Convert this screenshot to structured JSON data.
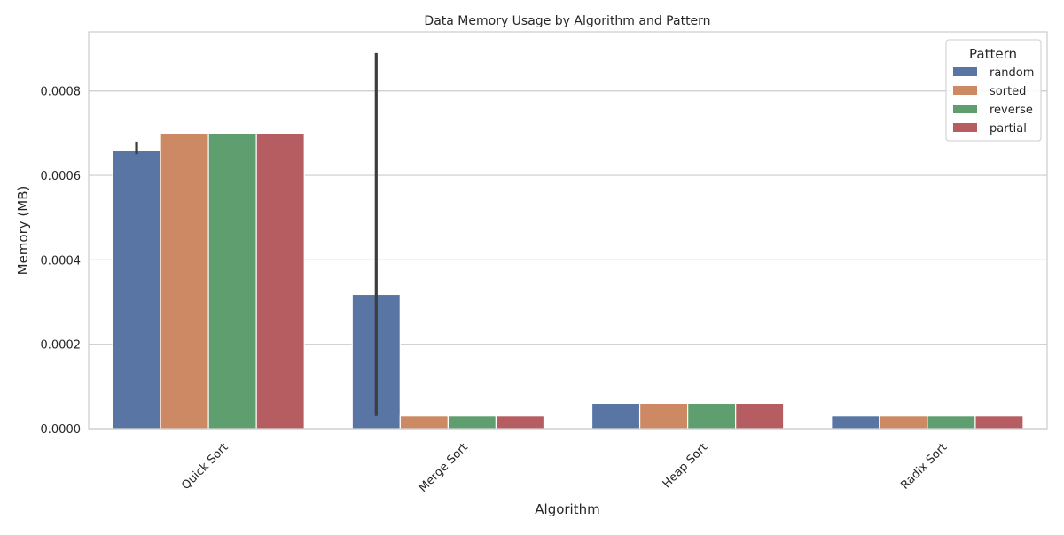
{
  "chart_data": {
    "type": "bar",
    "title": "Data Memory Usage by Algorithm and Pattern",
    "xlabel": "Algorithm",
    "ylabel": "Memory (MB)",
    "categories": [
      "Quick Sort",
      "Merge Sort",
      "Heap Sort",
      "Radix Sort"
    ],
    "ylim": [
      0,
      0.00094
    ],
    "yticks": [
      "0.0000",
      "0.0002",
      "0.0004",
      "0.0006",
      "0.0008"
    ],
    "ytick_values": [
      0,
      0.0002,
      0.0004,
      0.0006,
      0.0008
    ],
    "grid": true,
    "legend": {
      "title": "Pattern",
      "placement": "top-right"
    },
    "series": [
      {
        "name": "random",
        "color": "#5875a4",
        "values": [
          0.00066,
          0.000318,
          6e-05,
          3e-05
        ],
        "error_low": [
          0.00065,
          3e-05,
          null,
          null
        ],
        "error_high": [
          0.00068,
          0.00089,
          null,
          null
        ]
      },
      {
        "name": "sorted",
        "color": "#cc8963",
        "values": [
          0.0007,
          3e-05,
          6e-05,
          3e-05
        ]
      },
      {
        "name": "reverse",
        "color": "#5f9e6e",
        "values": [
          0.0007,
          3e-05,
          6e-05,
          3e-05
        ]
      },
      {
        "name": "partial",
        "color": "#b55d60",
        "values": [
          0.0007,
          3e-05,
          6e-05,
          3e-05
        ]
      }
    ]
  }
}
